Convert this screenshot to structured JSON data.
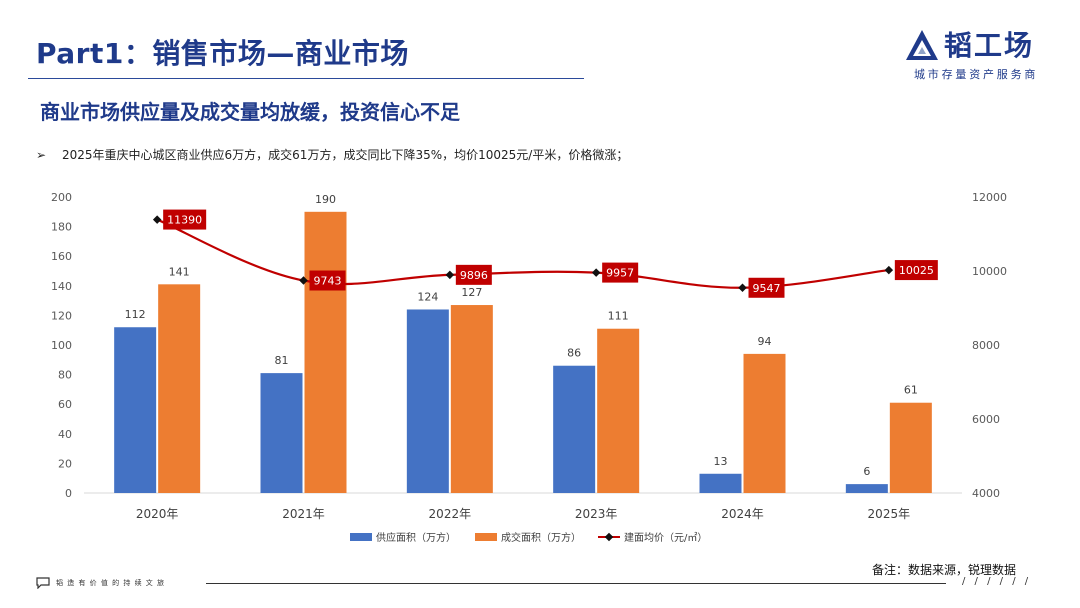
{
  "header": {
    "title": "Part1：销售市场—商业市场",
    "subtitle": "商业市场供应量及成交量均放缓，投资信心不足",
    "bullet_marker": "➢",
    "bullet": "2025年重庆中心城区商业供应6万方，成交61万方，成交同比下降35%，均价10025元/平米，价格微涨；"
  },
  "logo": {
    "brand": "韬工场",
    "tagline": "城市存量资产服务商",
    "icon": "triangle-logo-icon"
  },
  "colors": {
    "title": "#1f3a8a",
    "supply": "#4472c4",
    "deal": "#ed7d31",
    "price": "#c00000",
    "price_label_bg": "#c00000"
  },
  "chart_data": {
    "type": "bar",
    "categories": [
      "2020年",
      "2021年",
      "2022年",
      "2023年",
      "2024年",
      "2025年"
    ],
    "series": [
      {
        "name": "供应面积（万方）",
        "type": "bar",
        "axis": "left",
        "values": [
          112,
          81,
          124,
          86,
          13,
          6
        ]
      },
      {
        "name": "成交面积（万方）",
        "type": "bar",
        "axis": "left",
        "values": [
          141,
          190,
          127,
          111,
          94,
          61
        ]
      },
      {
        "name": "建面均价（元/㎡）",
        "type": "line",
        "axis": "right",
        "values": [
          11390,
          9743,
          9896,
          9957,
          9547,
          10025
        ]
      }
    ],
    "y_left": {
      "min": 0,
      "max": 200,
      "ticks": [
        "0",
        "20",
        "40",
        "60",
        "80",
        "100",
        "120",
        "140",
        "160",
        "180",
        "200"
      ]
    },
    "y_right": {
      "min": 4000,
      "max": 12000,
      "ticks": [
        "4000",
        "6000",
        "8000",
        "10000",
        "12000"
      ]
    },
    "grid": false,
    "legend_position": "bottom"
  },
  "footer": {
    "note": "备注：数据来源，锐理数据",
    "slogan": "韬 造 有 价 值 的 持 续 文 旅",
    "slashes": "/ / / / / /"
  }
}
